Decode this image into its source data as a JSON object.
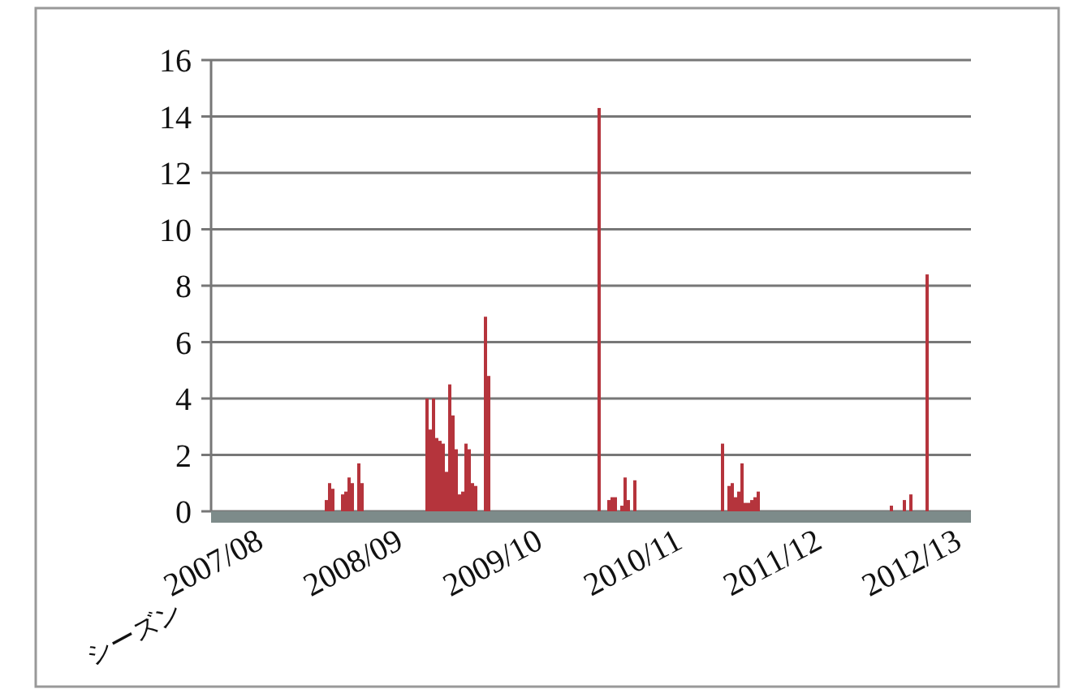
{
  "chart_data": {
    "type": "bar",
    "xlabel": "シーズン",
    "color": "#b5343c",
    "ylim": [
      0,
      16
    ],
    "yticks": [
      0,
      2,
      4,
      6,
      8,
      10,
      12,
      14,
      16
    ],
    "grid": "y",
    "categories": [
      null,
      null,
      null,
      null,
      null,
      null,
      null,
      null,
      null,
      null,
      null,
      null,
      null,
      null,
      null,
      "2007/08",
      null,
      null,
      null,
      null,
      null,
      null,
      null,
      null,
      null,
      null,
      null,
      null,
      null,
      null,
      null,
      null,
      null,
      null,
      null,
      null,
      null,
      null,
      null,
      null,
      null,
      null,
      null,
      null,
      null,
      null,
      null,
      null,
      null,
      null,
      null,
      null,
      null,
      null,
      null,
      null,
      null,
      null,
      "2008/09",
      null,
      null,
      null,
      null,
      null,
      null,
      null,
      null,
      null,
      null,
      null,
      null,
      null,
      null,
      null,
      null,
      null,
      null,
      null,
      null,
      null,
      null,
      null,
      null,
      null,
      null,
      null,
      null,
      null,
      null,
      null,
      null,
      null,
      null,
      null,
      null,
      null,
      null,
      null,
      null,
      null,
      null,
      "2009/10",
      null,
      null,
      null,
      null,
      null,
      null,
      null,
      null,
      null,
      null,
      null,
      null,
      null,
      null,
      null,
      null,
      null,
      null,
      null,
      null,
      null,
      null,
      null,
      null,
      null,
      null,
      null,
      null,
      null,
      null,
      null,
      null,
      null,
      null,
      null,
      null,
      null,
      null,
      null,
      null,
      null,
      null,
      "2010/11",
      null,
      null,
      null,
      null,
      null,
      null,
      null,
      null,
      null,
      null,
      null,
      null,
      null,
      null,
      null,
      null,
      null,
      null,
      null,
      null,
      null,
      null,
      null,
      null,
      null,
      null,
      null,
      null,
      null,
      null,
      null,
      null,
      null,
      null,
      null,
      null,
      null,
      null,
      null,
      null,
      null,
      null,
      "2011/12",
      null,
      null,
      null,
      null,
      null,
      null,
      null,
      null,
      null,
      null,
      null,
      null,
      null,
      null,
      null,
      null,
      null,
      null,
      null,
      null,
      null,
      null,
      null,
      null,
      null,
      null,
      null,
      null,
      null,
      null,
      null,
      null,
      null,
      null,
      null,
      null,
      null,
      null,
      null,
      null,
      null,
      null,
      "2012/13",
      null,
      null,
      null
    ],
    "values": [
      0,
      0,
      0,
      0,
      0,
      0,
      0,
      0,
      0,
      0,
      0,
      0,
      0,
      0,
      0,
      0,
      0,
      0,
      0,
      0,
      0,
      0,
      0,
      0,
      0,
      0,
      0,
      0,
      0,
      0,
      0,
      0,
      0,
      0,
      0,
      0.4,
      1.0,
      0.8,
      0,
      0,
      0.6,
      0.7,
      1.2,
      1.0,
      0,
      1.7,
      1.0,
      0,
      0,
      0,
      0,
      0,
      0,
      0,
      0,
      0,
      0,
      0,
      0,
      0,
      0,
      0,
      0,
      0,
      0,
      0,
      4.0,
      2.9,
      4.0,
      2.6,
      2.5,
      2.4,
      1.4,
      4.5,
      3.4,
      2.2,
      0.6,
      0.7,
      2.4,
      2.2,
      1.0,
      0.9,
      0,
      0,
      6.9,
      4.8,
      0,
      0,
      0,
      0,
      0,
      0,
      0,
      0,
      0,
      0,
      0,
      0,
      0,
      0,
      0,
      0,
      0,
      0,
      0,
      0,
      0,
      0,
      0,
      0,
      0,
      0,
      0,
      0,
      0,
      0,
      0,
      0,
      0,
      14.3,
      0,
      0,
      0.4,
      0.5,
      0.5,
      0,
      0.2,
      1.2,
      0.4,
      0,
      1.1,
      0,
      0,
      0,
      0,
      0,
      0,
      0,
      0,
      0,
      0,
      0,
      0,
      0,
      0,
      0,
      0,
      0,
      0,
      0,
      0,
      0,
      0,
      0,
      0,
      0,
      0,
      2.4,
      0,
      0.9,
      1.0,
      0.5,
      0.7,
      1.7,
      0.3,
      0.3,
      0.4,
      0.5,
      0.7,
      0,
      0,
      0,
      0,
      0,
      0,
      0,
      0,
      0,
      0,
      0,
      0,
      0,
      0,
      0,
      0,
      0,
      0,
      0,
      0,
      0,
      0,
      0,
      0,
      0,
      0,
      0,
      0,
      0,
      0,
      0,
      0,
      0,
      0,
      0,
      0,
      0,
      0,
      0,
      0,
      0.2,
      0,
      0,
      0,
      0.4,
      0,
      0.6,
      0,
      0,
      0,
      0,
      8.4,
      0,
      0,
      0,
      0,
      0,
      0,
      0,
      0,
      0,
      0,
      0,
      0,
      0
    ]
  }
}
